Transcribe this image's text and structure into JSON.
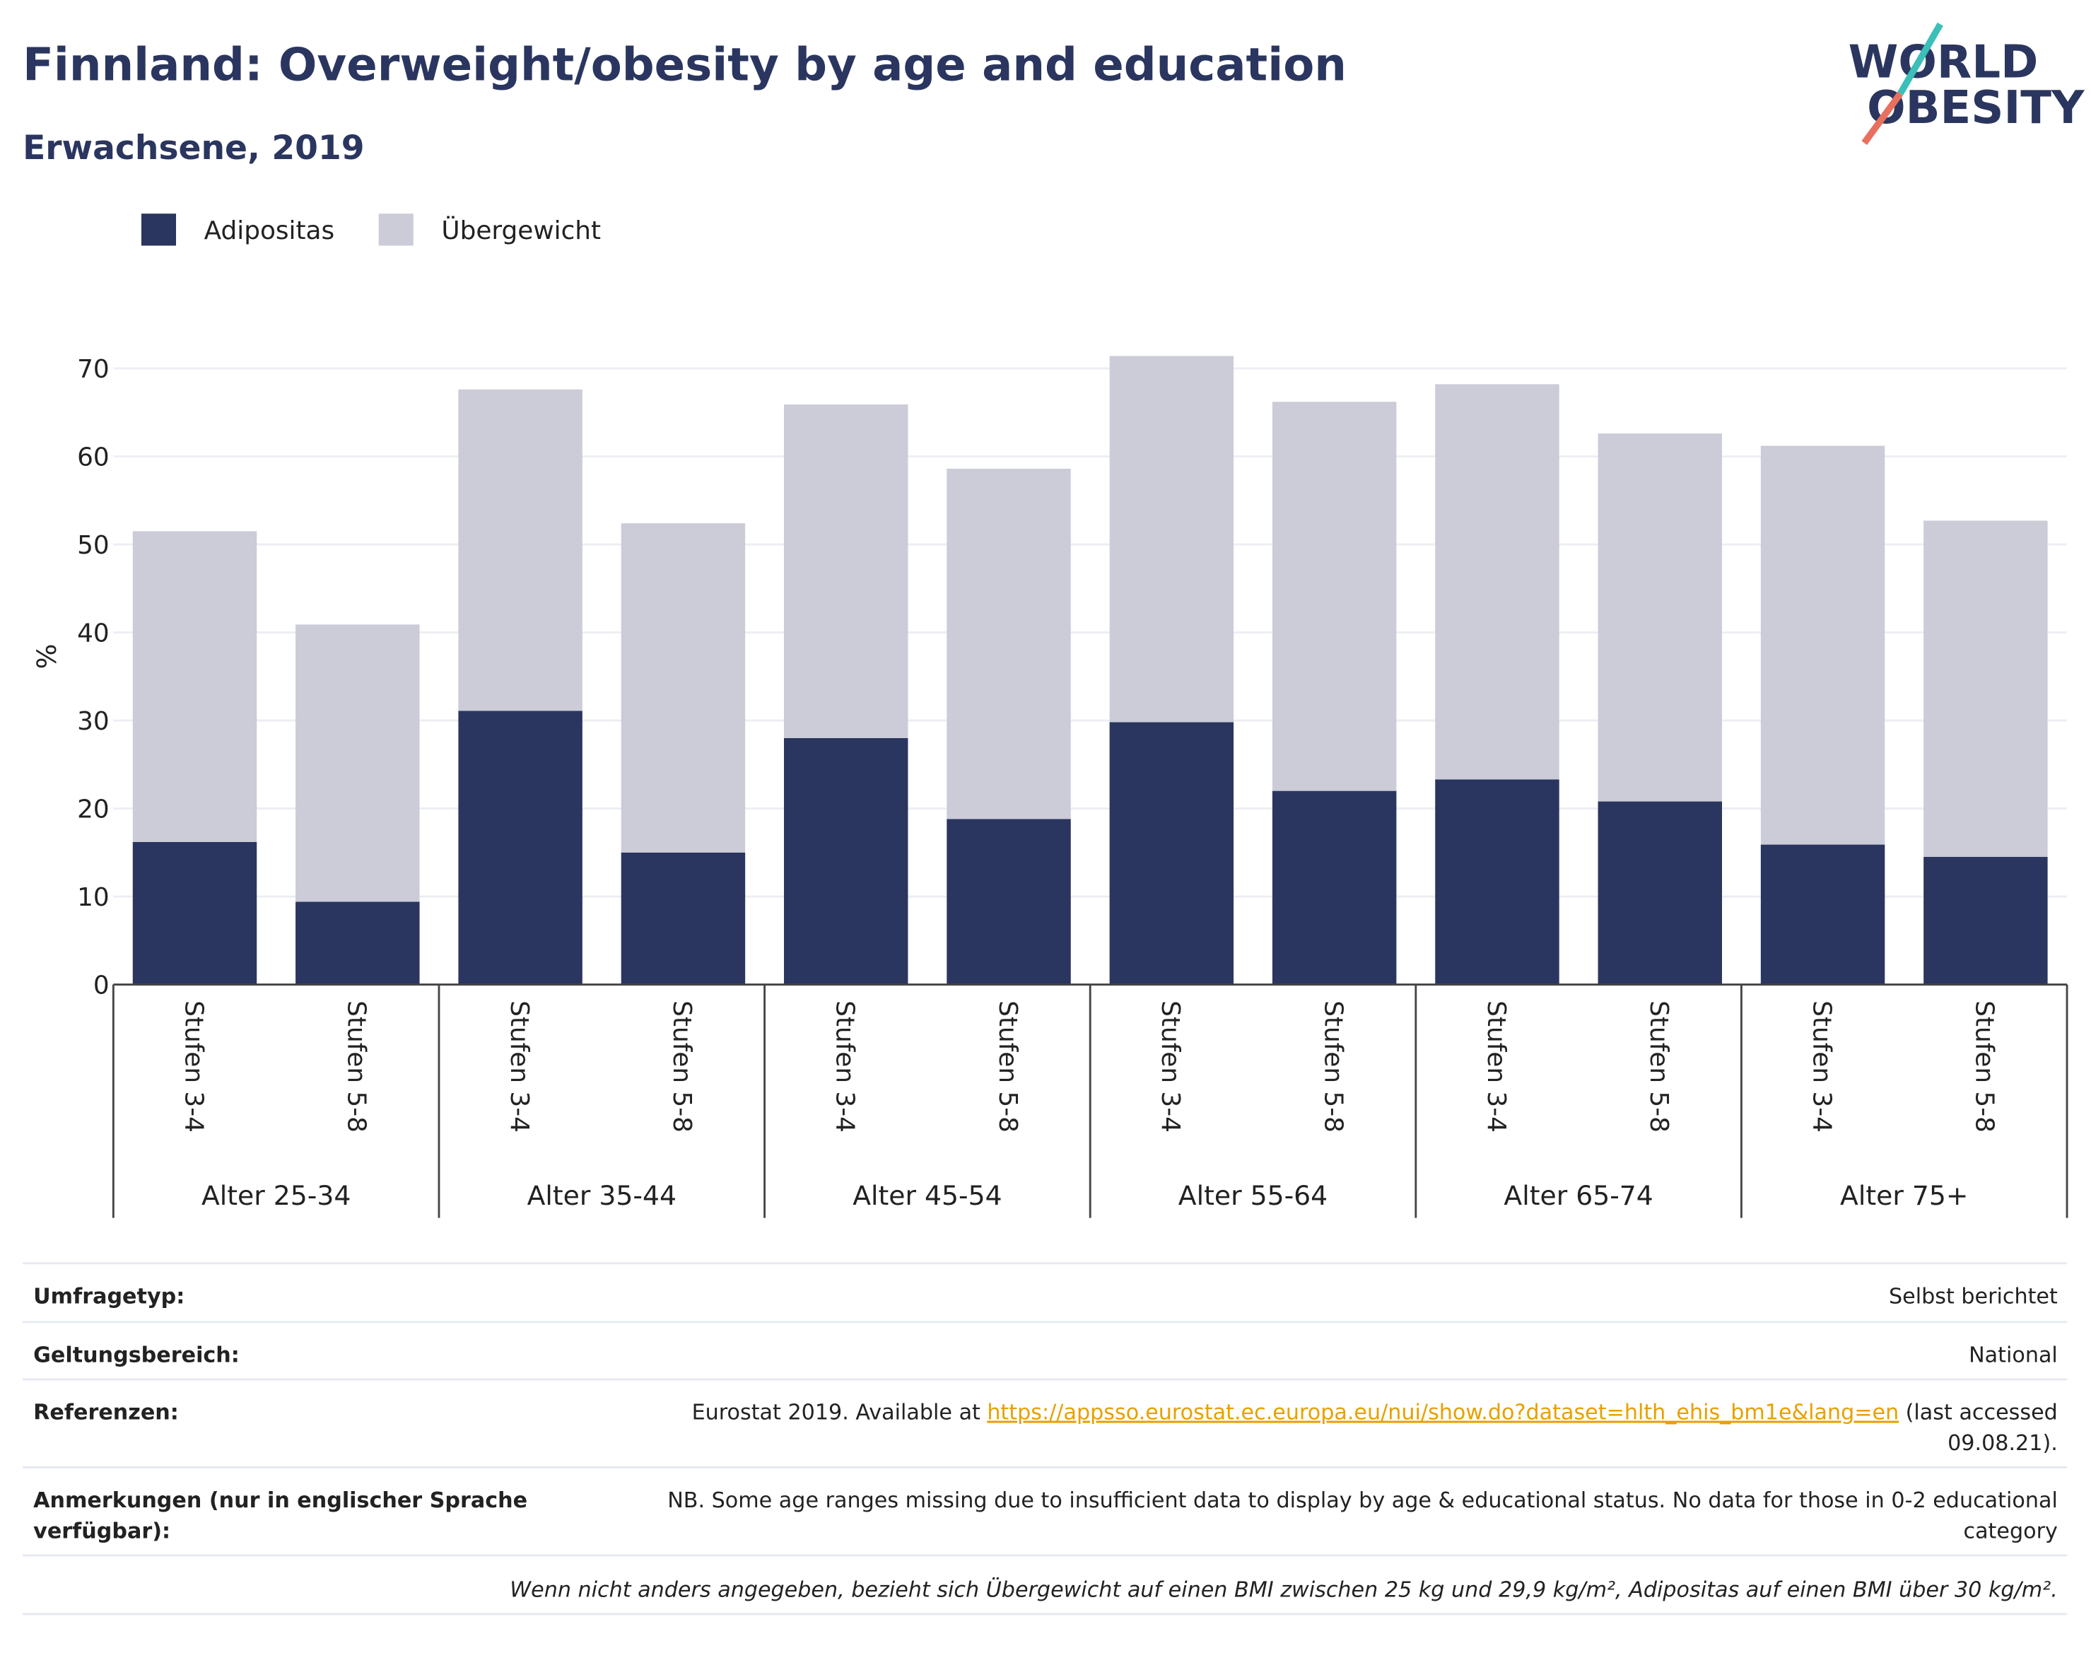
{
  "logo": [
    "WORLD",
    "OBESITY"
  ],
  "chart_data": {
    "type": "stacked_bar",
    "title": "Finnland: Overweight/obesity by age and education",
    "subtitle": "Erwachsene, 2019",
    "ylabel": "%",
    "categories": [
      "Stufen 3-4",
      "Stufen 5-8",
      "Stufen 3-4",
      "Stufen 5-8",
      "Stufen 3-4",
      "Stufen 5-8",
      "Stufen 3-4",
      "Stufen 5-8",
      "Stufen 3-4",
      "Stufen 5-8",
      "Stufen 3-4",
      "Stufen 5-8"
    ],
    "groups": [
      "Alter 25-34",
      "Alter 35-44",
      "Alter 45-54",
      "Alter 55-64",
      "Alter 65-74",
      "Alter 75+"
    ],
    "series": [
      {
        "name": "Adipositas",
        "color": "#2a365f",
        "values": [
          16.2,
          9.4,
          31.1,
          15.0,
          28.0,
          18.8,
          29.8,
          22.0,
          23.3,
          20.8,
          15.9,
          14.5
        ]
      },
      {
        "name": "Übergewicht",
        "color": "#cbccd8",
        "values": [
          35.3,
          31.5,
          36.5,
          37.4,
          37.9,
          39.8,
          41.6,
          44.2,
          44.9,
          41.8,
          45.3,
          38.2
        ]
      }
    ],
    "ylim": [
      0,
      70
    ],
    "yticks": [
      0,
      10,
      20,
      30,
      40,
      50,
      60,
      70
    ],
    "grid": true
  },
  "table": {
    "rows": [
      {
        "label": [
          "Umfragetyp:"
        ],
        "value": [
          "Selbst berichtet"
        ]
      },
      {
        "label": [
          "Geltungsbereich:"
        ],
        "value": [
          "National"
        ]
      },
      {
        "label": [
          "Referenzen:"
        ],
        "value": [
          "Eurostat 2019. Available at",
          "(last accessed",
          "09.08.21)."
        ],
        "link": "https://appsso.eurostat.ec.europa.eu/nui/show.do?dataset=hlth_ehis_bm1e&lang=en"
      },
      {
        "label": [
          "Anmerkungen (nur in englischer Sprache",
          "verfügbar):"
        ],
        "value": [
          "NB. Some age ranges missing due to insufficient data to display by age & educational status. No data for those in 0-2 educational",
          "category"
        ]
      }
    ],
    "footnote": "Wenn nicht anders angegeben, bezieht sich Übergewicht auf einen BMI zwischen 25 kg und 29,9 kg/m², Adipositas auf einen BMI über 30 kg/m²."
  }
}
